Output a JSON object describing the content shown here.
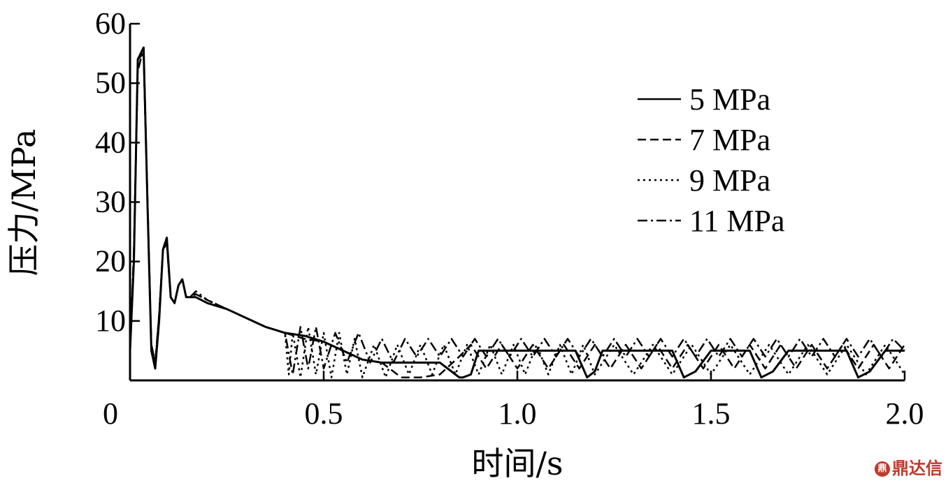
{
  "chart_data": {
    "type": "line",
    "title": "",
    "xlabel": "时间/s",
    "ylabel": "压力/MPa",
    "xlim": [
      0,
      2.0
    ],
    "ylim": [
      0,
      60
    ],
    "xticks": [
      "0",
      "0.5",
      "1.0",
      "1.5",
      "2.0"
    ],
    "yticks": [
      "10",
      "20",
      "30",
      "40",
      "50",
      "60"
    ],
    "xtick_values": [
      0,
      0.5,
      1.0,
      1.5,
      2.0
    ],
    "ytick_values": [
      10,
      20,
      30,
      40,
      50,
      60
    ],
    "grid": false,
    "legend_position": "top-right",
    "series": [
      {
        "name": "5 MPa",
        "style": "solid",
        "x": [
          0.0,
          0.01,
          0.02,
          0.035,
          0.045,
          0.055,
          0.065,
          0.075,
          0.085,
          0.095,
          0.105,
          0.115,
          0.125,
          0.135,
          0.145,
          0.155,
          0.17,
          0.2,
          0.25,
          0.3,
          0.35,
          0.4,
          0.45,
          0.5,
          0.55,
          0.6,
          0.65,
          0.7,
          0.75,
          0.8,
          0.85,
          0.86,
          0.88,
          0.9,
          0.92,
          0.95,
          1.0,
          1.05,
          1.1,
          1.15,
          1.18,
          1.2,
          1.22,
          1.25,
          1.3,
          1.35,
          1.4,
          1.43,
          1.46,
          1.5,
          1.55,
          1.6,
          1.63,
          1.66,
          1.7,
          1.75,
          1.8,
          1.85,
          1.88,
          1.91,
          1.95,
          2.0
        ],
        "values": [
          5,
          20,
          54,
          56,
          30,
          5,
          2,
          10,
          22,
          24,
          14,
          13,
          16,
          17,
          14,
          14,
          14,
          13,
          12,
          10.5,
          9,
          8,
          7.5,
          6.5,
          5,
          3.5,
          3,
          3,
          3,
          3,
          0.5,
          0.5,
          1,
          5,
          5,
          5,
          5,
          5,
          5,
          5,
          0.5,
          1.5,
          5,
          5,
          5,
          5,
          5,
          0.5,
          1.5,
          5,
          5,
          5,
          0.5,
          1.5,
          5,
          5,
          5,
          5,
          0.5,
          1.5,
          5,
          5
        ]
      },
      {
        "name": "7 MPa",
        "style": "dashed",
        "x": [
          0.0,
          0.01,
          0.02,
          0.035,
          0.045,
          0.055,
          0.065,
          0.075,
          0.085,
          0.095,
          0.105,
          0.115,
          0.125,
          0.135,
          0.145,
          0.155,
          0.17,
          0.2,
          0.25,
          0.3,
          0.35,
          0.4,
          0.45,
          0.5,
          0.55,
          0.6,
          0.65,
          0.7,
          0.75,
          0.8,
          0.85,
          0.88,
          0.92,
          0.96,
          1.0,
          1.04,
          1.08,
          1.12,
          1.16,
          1.2,
          1.24,
          1.28,
          1.32,
          1.36,
          1.4,
          1.44,
          1.48,
          1.52,
          1.56,
          1.6,
          1.64,
          1.68,
          1.72,
          1.76,
          1.8,
          1.84,
          1.88,
          1.92,
          1.96,
          2.0
        ],
        "values": [
          5,
          21,
          54,
          55,
          30,
          6,
          3,
          11,
          22,
          23,
          14,
          13,
          16,
          17,
          14,
          14,
          14.5,
          13.5,
          12,
          10.5,
          9,
          8,
          7,
          6.5,
          5,
          3.5,
          3,
          0.5,
          0.5,
          1,
          4,
          6,
          2,
          6,
          2,
          6,
          2,
          6,
          2,
          6,
          2,
          6,
          2,
          6,
          2,
          6,
          2,
          6,
          2,
          6,
          2,
          6,
          2,
          6,
          2,
          6,
          2,
          6,
          2,
          6
        ]
      },
      {
        "name": "9 MPa",
        "style": "dotted",
        "x": [
          0.0,
          0.01,
          0.02,
          0.035,
          0.045,
          0.055,
          0.065,
          0.075,
          0.085,
          0.095,
          0.105,
          0.115,
          0.125,
          0.135,
          0.145,
          0.155,
          0.17,
          0.2,
          0.25,
          0.3,
          0.35,
          0.4,
          0.41,
          0.42,
          0.44,
          0.46,
          0.48,
          0.5,
          0.52,
          0.54,
          0.56,
          0.58,
          0.6,
          0.63,
          0.66,
          0.69,
          0.72,
          0.75,
          0.78,
          0.81,
          0.84,
          0.87,
          0.9,
          0.93,
          0.96,
          0.99,
          1.02,
          1.05,
          1.08,
          1.11,
          1.14,
          1.17,
          1.2,
          1.25,
          1.3,
          1.35,
          1.4,
          1.45,
          1.5,
          1.55,
          1.6,
          1.65,
          1.7,
          1.75,
          1.8,
          1.85,
          1.9,
          1.95,
          2.0
        ],
        "values": [
          5,
          20,
          53,
          55,
          30,
          5,
          2,
          10,
          22,
          24,
          14,
          13,
          16,
          17,
          14,
          14,
          14.5,
          13.5,
          12,
          10.5,
          9,
          8,
          1,
          8,
          0.5,
          9,
          1,
          8,
          0.5,
          8,
          1,
          7,
          0.5,
          6,
          0.5,
          6,
          1,
          6,
          1,
          6,
          1,
          6,
          1,
          6,
          1,
          6,
          1,
          6,
          1,
          6,
          1,
          6,
          1,
          6,
          1,
          6,
          1,
          6,
          1,
          6,
          1,
          6,
          1,
          6,
          1,
          6,
          1,
          6,
          1
        ]
      },
      {
        "name": "11 MPa",
        "style": "dashdot",
        "x": [
          0.0,
          0.01,
          0.02,
          0.035,
          0.045,
          0.055,
          0.065,
          0.075,
          0.085,
          0.095,
          0.105,
          0.115,
          0.125,
          0.135,
          0.145,
          0.155,
          0.17,
          0.2,
          0.25,
          0.3,
          0.35,
          0.4,
          0.42,
          0.44,
          0.46,
          0.48,
          0.5,
          0.53,
          0.56,
          0.59,
          0.62,
          0.65,
          0.68,
          0.71,
          0.74,
          0.77,
          0.8,
          0.83,
          0.86,
          0.89,
          0.92,
          0.95,
          0.98,
          1.01,
          1.04,
          1.07,
          1.1,
          1.13,
          1.16,
          1.19,
          1.22,
          1.25,
          1.28,
          1.31,
          1.34,
          1.37,
          1.4,
          1.43,
          1.46,
          1.49,
          1.52,
          1.55,
          1.58,
          1.61,
          1.64,
          1.67,
          1.7,
          1.73,
          1.76,
          1.79,
          1.82,
          1.85,
          1.88,
          1.91,
          1.94,
          1.97,
          2.0
        ],
        "values": [
          5,
          22,
          52,
          56,
          31,
          6,
          3,
          11,
          22,
          23,
          14,
          13,
          16,
          17,
          14,
          14,
          15,
          13.5,
          12,
          10.5,
          9,
          8,
          1,
          9,
          2,
          9,
          2,
          8,
          3,
          8,
          3,
          7,
          3,
          7,
          4,
          7,
          4,
          7,
          4,
          7,
          4,
          7,
          4,
          7,
          4,
          7,
          4,
          7,
          4,
          7,
          4,
          7,
          4,
          7,
          4,
          7,
          4,
          7,
          4,
          7,
          4,
          7,
          4,
          7,
          4,
          7,
          4,
          7,
          4,
          7,
          4,
          7,
          4,
          7,
          4,
          7,
          5
        ]
      }
    ]
  },
  "watermark": {
    "icon": "dingxin-logo-icon",
    "text": "鼎达信"
  }
}
